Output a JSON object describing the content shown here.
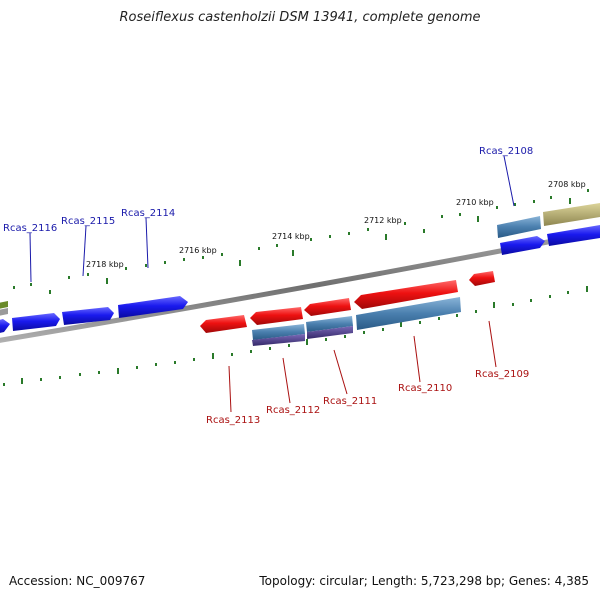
{
  "title": "Roseiflexus castenholzii DSM 13941, complete genome",
  "footer": {
    "accession": "Accession: NC_009767",
    "topology": "Topology: circular; Length: 5,723,298 bp; Genes: 4,385"
  },
  "scale_labels": [
    "2718 kbp",
    "2716 kbp",
    "2714 kbp",
    "2712 kbp",
    "2710 kbp",
    "2708 kbp"
  ],
  "colors": {
    "forward_gene": "#1a1aee",
    "reverse_gene": "#ee1111",
    "forward_label": "#1a1aaa",
    "reverse_label": "#aa1111",
    "steelblue_feature": "#4a7fae",
    "purple_feature": "#4a3a8a",
    "khaki_feature": "#b4ac6a",
    "olive_feature": "#6a8a2a",
    "tick": "#2a7a2a",
    "backbone": "#888888"
  },
  "forward_genes": [
    {
      "label": "Rcas_2116"
    },
    {
      "label": "Rcas_2115"
    },
    {
      "label": "Rcas_2114"
    },
    {
      "label": "Rcas_2108"
    }
  ],
  "reverse_genes": [
    {
      "label": "Rcas_2113"
    },
    {
      "label": "Rcas_2112"
    },
    {
      "label": "Rcas_2111"
    },
    {
      "label": "Rcas_2110"
    },
    {
      "label": "Rcas_2109"
    }
  ]
}
